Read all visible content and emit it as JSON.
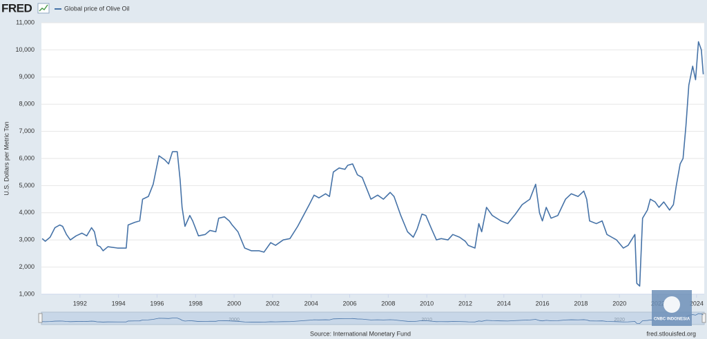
{
  "logo": "FRED",
  "watermark": "CNBC INDONESIA",
  "chart_data": {
    "type": "line",
    "y_axis_label": "U.S. Dollars per Metric Ton",
    "source": "Source: International Monetary Fund",
    "site": "fred.stlouisfed.org",
    "grid": true,
    "xlim": [
      1990,
      2024.4
    ],
    "xticks": [
      1992,
      1994,
      1996,
      1998,
      2000,
      2002,
      2004,
      2006,
      2008,
      2010,
      2012,
      2014,
      2016,
      2018,
      2020,
      2022,
      2024
    ],
    "ylim": [
      1000,
      11000
    ],
    "yticks": [
      {
        "value": 1000,
        "label": "1,000"
      },
      {
        "value": 2000,
        "label": "2,000"
      },
      {
        "value": 3000,
        "label": "3,000"
      },
      {
        "value": 4000,
        "label": "4,000"
      },
      {
        "value": 5000,
        "label": "5,000"
      },
      {
        "value": 6000,
        "label": "6,000"
      },
      {
        "value": 7000,
        "label": "7,000"
      },
      {
        "value": 8000,
        "label": "8,000"
      },
      {
        "value": 9000,
        "label": "9,000"
      },
      {
        "value": 10000,
        "label": "10,000"
      },
      {
        "value": 11000,
        "label": "11,000"
      }
    ],
    "navigator_ticks": [
      2000,
      2010,
      2020
    ],
    "x": [
      1990.04,
      1990.2,
      1990.45,
      1990.7,
      1990.95,
      1991.1,
      1991.3,
      1991.5,
      1991.8,
      1992.1,
      1992.35,
      1992.6,
      1992.75,
      1992.9,
      1993.05,
      1993.2,
      1993.45,
      1993.95,
      1994.4,
      1994.5,
      1994.85,
      1995.1,
      1995.25,
      1995.55,
      1995.8,
      1996.1,
      1996.4,
      1996.6,
      1996.8,
      1997.05,
      1997.2,
      1997.3,
      1997.45,
      1997.7,
      1997.85,
      1998.15,
      1998.5,
      1998.75,
      1999.05,
      1999.2,
      1999.5,
      1999.75,
      1999.9,
      2000.2,
      2000.55,
      2000.9,
      2001.3,
      2001.55,
      2001.9,
      2002.15,
      2002.55,
      2002.9,
      2003.3,
      2003.6,
      2003.9,
      2004.15,
      2004.4,
      2004.75,
      2004.95,
      2005.15,
      2005.45,
      2005.75,
      2005.9,
      2006.15,
      2006.4,
      2006.65,
      2007.1,
      2007.45,
      2007.75,
      2008.1,
      2008.3,
      2008.65,
      2009.0,
      2009.3,
      2009.5,
      2009.75,
      2009.95,
      2010.25,
      2010.5,
      2010.75,
      2011.1,
      2011.35,
      2011.7,
      2012.0,
      2012.15,
      2012.5,
      2012.7,
      2012.85,
      2013.1,
      2013.4,
      2013.85,
      2014.2,
      2014.6,
      2014.95,
      2015.35,
      2015.65,
      2015.85,
      2016.0,
      2016.2,
      2016.45,
      2016.8,
      2017.2,
      2017.5,
      2017.85,
      2018.15,
      2018.3,
      2018.45,
      2018.8,
      2019.1,
      2019.35,
      2019.85,
      2020.2,
      2020.45,
      2020.8,
      2020.9,
      2021.05,
      2021.2,
      2021.45,
      2021.6,
      2021.85,
      2022.05,
      2022.3,
      2022.6,
      2022.8,
      2022.95,
      2023.15,
      2023.3,
      2023.45,
      2023.6,
      2023.8,
      2023.95,
      2024.1,
      2024.25,
      2024.35
    ],
    "series": [
      {
        "name": "Global price of Olive Oil",
        "color": "#4572a7",
        "values": [
          3050,
          2950,
          3100,
          3450,
          3550,
          3500,
          3200,
          3000,
          3150,
          3250,
          3150,
          3450,
          3300,
          2800,
          2750,
          2600,
          2750,
          2700,
          2700,
          3550,
          3650,
          3700,
          4500,
          4600,
          5050,
          6100,
          5950,
          5800,
          6250,
          6250,
          5200,
          4200,
          3500,
          3900,
          3700,
          3150,
          3200,
          3350,
          3300,
          3800,
          3850,
          3700,
          3550,
          3300,
          2700,
          2600,
          2600,
          2550,
          2900,
          2800,
          3000,
          3050,
          3500,
          3900,
          4300,
          4650,
          4550,
          4700,
          4600,
          5500,
          5650,
          5600,
          5750,
          5800,
          5400,
          5300,
          4500,
          4650,
          4500,
          4750,
          4600,
          3900,
          3300,
          3100,
          3400,
          3950,
          3900,
          3400,
          3000,
          3050,
          3000,
          3200,
          3100,
          2950,
          2800,
          2700,
          3600,
          3300,
          4200,
          3900,
          3700,
          3600,
          3950,
          4300,
          4500,
          5050,
          4000,
          3700,
          4200,
          3800,
          3900,
          4500,
          4700,
          4600,
          4800,
          4500,
          3700,
          3600,
          3700,
          3200,
          3000,
          2700,
          2800,
          3200,
          1400,
          1300,
          3800,
          4100,
          4500,
          4400,
          4200,
          4400,
          4100,
          4300,
          5000,
          5800,
          6000,
          7200,
          8700,
          9400,
          8900,
          10300,
          10000,
          9100
        ]
      }
    ]
  }
}
